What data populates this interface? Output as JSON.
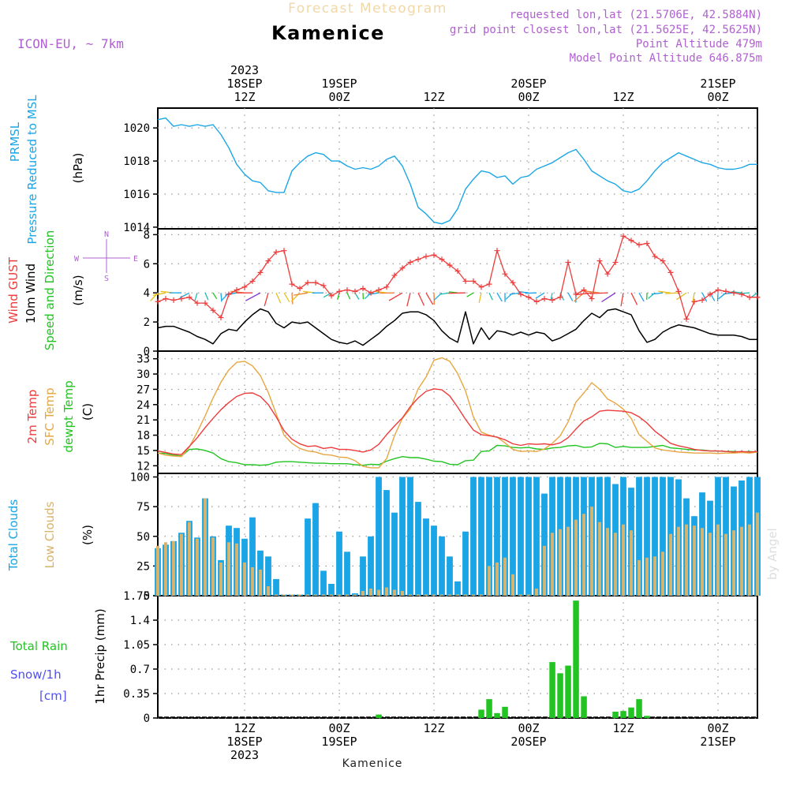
{
  "header": {
    "product": "Forecast Meteogram",
    "location": "Kamenice",
    "model": "ICON-EU, ~ 7km",
    "requested": "requested lon,lat (21.5706E, 42.5884N)",
    "gridpoint": "grid point closest lon,lat (21.5625E, 42.5625N)",
    "point_alt": "Point Altitude 479m",
    "model_alt": "Model Point Altitude 646.875m",
    "footer_location": "Kamenice",
    "watermark": "by Angel"
  },
  "time_axis": {
    "top_labels": [
      {
        "t": 12,
        "lines": [
          "2023",
          "18SEP",
          "12Z"
        ]
      },
      {
        "t": 24,
        "lines": [
          "19SEP",
          "00Z"
        ]
      },
      {
        "t": 36,
        "lines": [
          "12Z"
        ]
      },
      {
        "t": 48,
        "lines": [
          "20SEP",
          "00Z"
        ]
      },
      {
        "t": 60,
        "lines": [
          "12Z"
        ]
      },
      {
        "t": 72,
        "lines": [
          "21SEP",
          "00Z"
        ]
      }
    ],
    "bottom_labels": [
      {
        "t": 12,
        "lines": [
          "12Z",
          "18SEP",
          "2023"
        ]
      },
      {
        "t": 24,
        "lines": [
          "00Z",
          "19SEP"
        ]
      },
      {
        "t": 36,
        "lines": [
          "12Z"
        ]
      },
      {
        "t": 48,
        "lines": [
          "00Z",
          "20SEP"
        ]
      },
      {
        "t": 60,
        "lines": [
          "12Z"
        ]
      },
      {
        "t": 72,
        "lines": [
          "00Z",
          "21SEP"
        ]
      }
    ],
    "range_hours": [
      1,
      77
    ]
  },
  "colors": {
    "pressure": "#1aa6e6",
    "gust": "#ee3b3b",
    "wind": "#000000",
    "temp2m": "#ee3b3b",
    "sfc": "#e8a640",
    "dewpt": "#22c422",
    "total_clouds": "#1aa6e6",
    "low_clouds": "#d9b36a",
    "rain": "#22c422",
    "snow": "#5050ee",
    "purple": "#b060d0"
  },
  "chart_data": [
    {
      "type": "line",
      "panel": "pressure",
      "legend": [
        "PRMSL",
        "Pressure Reduced to MSL"
      ],
      "unit": "(hPa)",
      "yticks": [
        1014,
        1016,
        1018,
        1020
      ],
      "ylim": [
        1013.9,
        1021.2
      ],
      "x": [
        1,
        2,
        3,
        4,
        5,
        6,
        7,
        8,
        9,
        10,
        11,
        12,
        13,
        14,
        15,
        16,
        17,
        18,
        19,
        20,
        21,
        22,
        23,
        24,
        25,
        26,
        27,
        28,
        29,
        30,
        31,
        32,
        33,
        34,
        35,
        36,
        37,
        38,
        39,
        40,
        41,
        42,
        43,
        44,
        45,
        46,
        47,
        48,
        49,
        50,
        51,
        52,
        53,
        54,
        55,
        56,
        57,
        58,
        59,
        60,
        61,
        62,
        63,
        64,
        65,
        66,
        67,
        68,
        69,
        70,
        71,
        72,
        73,
        74,
        75,
        76,
        77
      ],
      "series": [
        {
          "values": [
            1020.5,
            1020.6,
            1020.1,
            1020.2,
            1020.1,
            1020.2,
            1020.1,
            1020.2,
            1019.6,
            1018.8,
            1017.8,
            1017.2,
            1016.8,
            1016.7,
            1016.2,
            1016.1,
            1016.1,
            1017.4,
            1017.9,
            1018.3,
            1018.5,
            1018.4,
            1018.0,
            1018.0,
            1017.7,
            1017.5,
            1017.6,
            1017.5,
            1017.7,
            1018.1,
            1018.3,
            1017.7,
            1016.6,
            1015.2,
            1014.8,
            1014.3,
            1014.2,
            1014.4,
            1015.1,
            1016.3,
            1016.9,
            1017.4,
            1017.3,
            1017.0,
            1017.1,
            1016.6,
            1017.0,
            1017.1,
            1017.5,
            1017.7,
            1017.9,
            1018.2,
            1018.5,
            1018.7,
            1018.1,
            1017.4,
            1017.1,
            1016.8,
            1016.6,
            1016.2,
            1016.1,
            1016.3,
            1016.8,
            1017.4,
            1017.9,
            1018.2,
            1018.5,
            1018.3,
            1018.1,
            1017.9,
            1017.8,
            1017.6,
            1017.5,
            1017.5,
            1017.6,
            1017.8,
            1017.8
          ]
        }
      ]
    },
    {
      "type": "line",
      "panel": "wind",
      "legend": [
        "Wind GUST",
        "10m Wind",
        "Speed and Direction"
      ],
      "unit": "(m/s)",
      "compass": [
        "N",
        "S",
        "W",
        "E"
      ],
      "yticks": [
        0,
        2,
        4,
        6,
        8
      ],
      "ylim": [
        0,
        8.4
      ],
      "x": [
        1,
        2,
        3,
        4,
        5,
        6,
        7,
        8,
        9,
        10,
        11,
        12,
        13,
        14,
        15,
        16,
        17,
        18,
        19,
        20,
        21,
        22,
        23,
        24,
        25,
        26,
        27,
        28,
        29,
        30,
        31,
        32,
        33,
        34,
        35,
        36,
        37,
        38,
        39,
        40,
        41,
        42,
        43,
        44,
        45,
        46,
        47,
        48,
        49,
        50,
        51,
        52,
        53,
        54,
        55,
        56,
        57,
        58,
        59,
        60,
        61,
        62,
        63,
        64,
        65,
        66,
        67,
        68,
        69,
        70,
        71,
        72,
        73,
        74,
        75,
        76,
        77
      ],
      "series": [
        {
          "name": "Wind GUST",
          "values": [
            3.4,
            3.6,
            3.5,
            3.6,
            3.7,
            3.3,
            3.3,
            2.8,
            2.3,
            3.9,
            4.2,
            4.4,
            4.8,
            5.4,
            6.2,
            6.8,
            6.9,
            4.6,
            4.3,
            4.7,
            4.7,
            4.5,
            3.8,
            4.1,
            4.2,
            4.1,
            4.3,
            4.0,
            4.2,
            4.4,
            5.2,
            5.7,
            6.1,
            6.3,
            6.5,
            6.6,
            6.3,
            5.9,
            5.5,
            4.8,
            4.8,
            4.4,
            4.6,
            6.9,
            5.3,
            4.7,
            3.9,
            3.7,
            3.4,
            3.6,
            3.5,
            3.7,
            6.1,
            3.9,
            4.2,
            3.6,
            6.2,
            5.3,
            6.1,
            7.9,
            7.6,
            7.3,
            7.4,
            6.5,
            6.2,
            5.4,
            4.1,
            2.2,
            3.4,
            3.5,
            3.9,
            4.2,
            4.1,
            4.0,
            3.9,
            3.7,
            3.7
          ]
        },
        {
          "name": "10m Wind",
          "values": [
            1.6,
            1.7,
            1.7,
            1.5,
            1.3,
            1.0,
            0.8,
            0.5,
            1.2,
            1.5,
            1.4,
            2.0,
            2.5,
            2.9,
            2.7,
            1.9,
            1.6,
            2.0,
            1.9,
            2.0,
            1.6,
            1.2,
            0.8,
            0.6,
            0.5,
            0.7,
            0.4,
            0.8,
            1.2,
            1.7,
            2.1,
            2.6,
            2.7,
            2.7,
            2.5,
            2.1,
            1.4,
            0.9,
            0.6,
            2.7,
            0.5,
            1.6,
            0.8,
            1.4,
            1.3,
            1.1,
            1.3,
            1.1,
            1.3,
            1.2,
            0.7,
            0.9,
            1.2,
            1.5,
            2.1,
            2.6,
            2.3,
            2.8,
            2.9,
            2.7,
            2.5,
            1.4,
            0.6,
            0.8,
            1.3,
            1.6,
            1.8,
            1.7,
            1.6,
            1.4,
            1.2,
            1.1,
            1.1,
            1.1,
            1.0,
            0.8,
            0.8
          ]
        }
      ]
    },
    {
      "type": "line",
      "panel": "temperature",
      "legend": [
        "2m Temp",
        "SFC Temp",
        "dewpt Temp"
      ],
      "unit": "(C)",
      "yticks": [
        12,
        15,
        18,
        21,
        24,
        27,
        30,
        33
      ],
      "ylim": [
        10.5,
        34.5
      ],
      "x": [
        1,
        2,
        3,
        4,
        5,
        6,
        7,
        8,
        9,
        10,
        11,
        12,
        13,
        14,
        15,
        16,
        17,
        18,
        19,
        20,
        21,
        22,
        23,
        24,
        25,
        26,
        27,
        28,
        29,
        30,
        31,
        32,
        33,
        34,
        35,
        36,
        37,
        38,
        39,
        40,
        41,
        42,
        43,
        44,
        45,
        46,
        47,
        48,
        49,
        50,
        51,
        52,
        53,
        54,
        55,
        56,
        57,
        58,
        59,
        60,
        61,
        62,
        63,
        64,
        65,
        66,
        67,
        68,
        69,
        70,
        71,
        72,
        73,
        74,
        75,
        76,
        77
      ],
      "series": [
        {
          "name": "2m Temp",
          "values": [
            14.9,
            14.6,
            14.3,
            14.2,
            15.8,
            17.5,
            19.5,
            21.3,
            23.0,
            24.4,
            25.6,
            26.2,
            26.3,
            25.6,
            24.0,
            21.6,
            18.9,
            17.2,
            16.3,
            15.8,
            15.9,
            15.4,
            15.6,
            15.2,
            15.2,
            15.0,
            14.7,
            15.1,
            16.2,
            18.1,
            19.8,
            21.4,
            23.6,
            25.3,
            26.6,
            27.1,
            26.9,
            25.7,
            23.5,
            21.1,
            19.0,
            18.1,
            17.9,
            17.6,
            17.1,
            16.3,
            16.0,
            16.3,
            16.2,
            16.3,
            16.1,
            16.5,
            17.5,
            19.2,
            20.8,
            21.6,
            22.7,
            22.9,
            22.8,
            22.7,
            22.4,
            21.6,
            20.4,
            18.8,
            17.6,
            16.4,
            15.9,
            15.6,
            15.2,
            15.0,
            14.9,
            14.9,
            14.8,
            14.7,
            14.8,
            14.7,
            14.8
          ]
        },
        {
          "name": "SFC Temp",
          "values": [
            14.5,
            14.1,
            13.9,
            13.8,
            15.7,
            18.6,
            21.8,
            25.3,
            28.4,
            30.8,
            32.3,
            32.5,
            31.6,
            29.7,
            26.4,
            22.2,
            18.0,
            16.4,
            15.4,
            14.9,
            14.7,
            14.2,
            14.1,
            13.7,
            13.6,
            13.0,
            11.9,
            11.6,
            11.6,
            13.4,
            17.9,
            21.3,
            23.2,
            27.1,
            29.4,
            32.7,
            33.2,
            32.5,
            30.1,
            26.7,
            21.6,
            18.6,
            18.0,
            17.6,
            16.5,
            15.2,
            14.8,
            14.9,
            14.8,
            15.3,
            16.4,
            17.9,
            20.6,
            24.5,
            26.3,
            28.3,
            27.0,
            25.1,
            24.3,
            23.1,
            21.3,
            18.1,
            16.8,
            15.5,
            15.1,
            14.9,
            14.7,
            14.6,
            14.5,
            14.5,
            14.5,
            14.4,
            14.5,
            14.5,
            14.6,
            14.5,
            14.7
          ]
        },
        {
          "name": "dewpt Temp",
          "values": [
            14.5,
            14.4,
            14.1,
            13.9,
            15.2,
            15.3,
            15.0,
            14.5,
            13.4,
            12.8,
            12.6,
            12.2,
            12.2,
            12.1,
            12.2,
            12.7,
            12.8,
            12.8,
            12.7,
            12.6,
            12.5,
            12.5,
            12.4,
            12.4,
            12.4,
            12.2,
            12.1,
            12.3,
            12.2,
            12.9,
            13.4,
            13.8,
            13.6,
            13.6,
            13.3,
            12.9,
            12.8,
            12.3,
            12.2,
            13.0,
            13.1,
            14.8,
            14.9,
            16.0,
            15.9,
            15.6,
            15.5,
            15.6,
            15.3,
            15.2,
            15.5,
            15.6,
            15.9,
            16.0,
            15.6,
            15.7,
            16.4,
            16.3,
            15.6,
            15.8,
            15.6,
            15.6,
            15.6,
            15.8,
            16.0,
            15.5,
            15.4,
            15.2,
            15.1,
            15.1,
            14.9,
            14.9,
            14.8,
            14.8,
            14.7,
            14.8,
            14.6
          ]
        }
      ]
    },
    {
      "type": "bar",
      "panel": "clouds",
      "legend": [
        "Total Clouds",
        "Low Clouds"
      ],
      "unit": "(%)",
      "yticks": [
        0,
        25,
        50,
        75,
        100
      ],
      "ylim": [
        0,
        103
      ],
      "x": [
        1,
        2,
        3,
        4,
        5,
        6,
        7,
        8,
        9,
        10,
        11,
        12,
        13,
        14,
        15,
        16,
        17,
        18,
        19,
        20,
        21,
        22,
        23,
        24,
        25,
        26,
        27,
        28,
        29,
        30,
        31,
        32,
        33,
        34,
        35,
        36,
        37,
        38,
        39,
        40,
        41,
        42,
        43,
        44,
        45,
        46,
        47,
        48,
        49,
        50,
        51,
        52,
        53,
        54,
        55,
        56,
        57,
        58,
        59,
        60,
        61,
        62,
        63,
        64,
        65,
        66,
        67,
        68,
        69,
        70,
        71,
        72,
        73,
        74,
        75,
        76,
        77
      ],
      "series": [
        {
          "name": "Total Clouds",
          "values": [
            40,
            43,
            46,
            53,
            63,
            49,
            82,
            50,
            30,
            59,
            57,
            48,
            66,
            38,
            33,
            14,
            1,
            1,
            1,
            65,
            78,
            21,
            10,
            54,
            37,
            2,
            33,
            50,
            100,
            89,
            70,
            100,
            100,
            79,
            65,
            59,
            50,
            33,
            12,
            54,
            100,
            100,
            100,
            100,
            100,
            100,
            100,
            100,
            100,
            86,
            100,
            100,
            100,
            100,
            100,
            100,
            100,
            100,
            94,
            100,
            91,
            100,
            100,
            100,
            100,
            100,
            98,
            82,
            67,
            87,
            80,
            100,
            100,
            92,
            97,
            100,
            100
          ]
        },
        {
          "name": "Low Clouds",
          "values": [
            42,
            45,
            46,
            52,
            62,
            48,
            82,
            49,
            28,
            45,
            44,
            28,
            24,
            22,
            8,
            1,
            1,
            1,
            1,
            1,
            1,
            1,
            1,
            1,
            1,
            1,
            4,
            6,
            5,
            7,
            5,
            4,
            1,
            1,
            1,
            1,
            1,
            1,
            1,
            1,
            1,
            1,
            25,
            28,
            32,
            18,
            1,
            1,
            6,
            42,
            53,
            56,
            58,
            64,
            69,
            75,
            62,
            57,
            53,
            60,
            55,
            30,
            32,
            33,
            37,
            52,
            58,
            60,
            59,
            57,
            53,
            60,
            52,
            55,
            58,
            60,
            70
          ]
        }
      ]
    },
    {
      "type": "bar",
      "panel": "precip",
      "legend": [
        "Total  Rain",
        "Snow/1h",
        "[cm]"
      ],
      "unit": "1hr Precip (mm)",
      "yticks": [
        0,
        0.35,
        0.7,
        1.05,
        1.4,
        1.75
      ],
      "ylim": [
        0,
        1.75
      ],
      "x": [
        29,
        42,
        43,
        44,
        45,
        51,
        52,
        53,
        54,
        55,
        59,
        60,
        61,
        62,
        63
      ],
      "series": [
        {
          "name": "Total Rain",
          "values": [
            0.05,
            0.12,
            0.27,
            0.07,
            0.16,
            0.8,
            0.64,
            0.75,
            1.68,
            0.31,
            0.09,
            0.1,
            0.15,
            0.27,
            0.03
          ]
        }
      ]
    }
  ]
}
